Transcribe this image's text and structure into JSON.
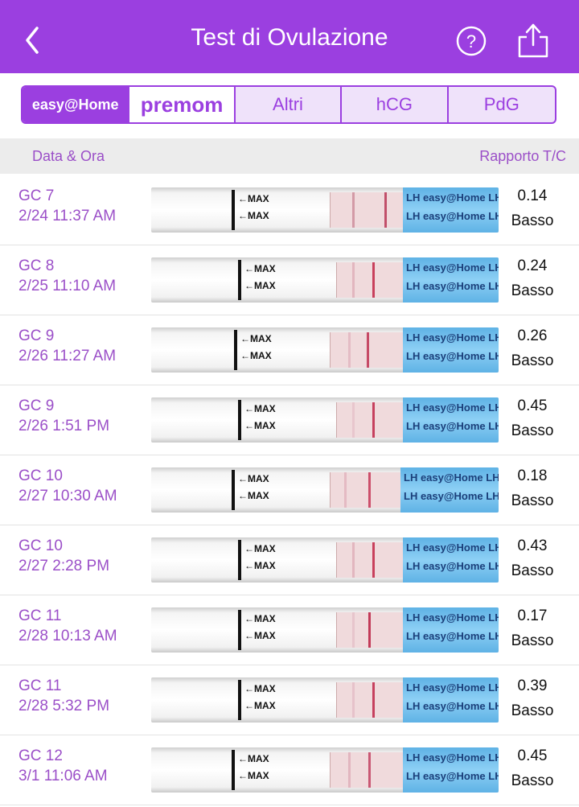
{
  "header": {
    "title": "Test di Ovulazione",
    "back_icon": "chevron-left-icon",
    "help_icon": "question-circle-icon",
    "share_icon": "share-icon"
  },
  "colors": {
    "accent": "#9b3fe0",
    "text_accent": "#9b4fc8"
  },
  "brands": {
    "easyhome": "easy@Home",
    "premom": "premom",
    "tabs": [
      "Altri",
      "hCG",
      "PdG"
    ]
  },
  "columns": {
    "date_time": "Data & Ora",
    "ratio": "Rapporto T/C"
  },
  "strip_text": {
    "max": "←MAX",
    "lh": "LH easy@Home LH"
  },
  "rows": [
    {
      "cd": "GC 7",
      "datetime": "2/24 11:37 AM",
      "ratio": "0.14",
      "level": "Basso"
    },
    {
      "cd": "GC 8",
      "datetime": "2/25 11:10 AM",
      "ratio": "0.24",
      "level": "Basso"
    },
    {
      "cd": "GC 9",
      "datetime": "2/26 11:27 AM",
      "ratio": "0.26",
      "level": "Basso"
    },
    {
      "cd": "GC 9",
      "datetime": "2/26 1:51 PM",
      "ratio": "0.45",
      "level": "Basso"
    },
    {
      "cd": "GC 10",
      "datetime": "2/27 10:30 AM",
      "ratio": "0.18",
      "level": "Basso"
    },
    {
      "cd": "GC 10",
      "datetime": "2/27 2:28 PM",
      "ratio": "0.43",
      "level": "Basso"
    },
    {
      "cd": "GC 11",
      "datetime": "2/28 10:13 AM",
      "ratio": "0.17",
      "level": "Basso"
    },
    {
      "cd": "GC 11",
      "datetime": "2/28 5:32 PM",
      "ratio": "0.39",
      "level": "Basso"
    },
    {
      "cd": "GC 12",
      "datetime": "3/1 11:06 AM",
      "ratio": "0.45",
      "level": "Basso"
    }
  ]
}
